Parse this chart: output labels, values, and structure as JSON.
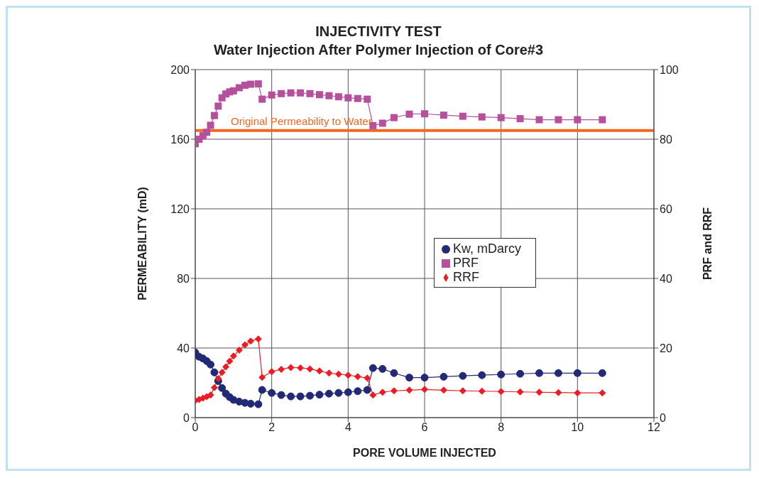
{
  "chart_data": {
    "type": "line",
    "title": "INJECTIVITY TEST",
    "subtitle": "Water Injection After Polymer Injection of Core#3",
    "xlabel": "PORE VOLUME INJECTED",
    "ylabel": "PERMEABILITY (mD)",
    "y2label": "PRF and RRF",
    "xlim": [
      0,
      12
    ],
    "xticks": [
      0,
      2,
      4,
      6,
      8,
      10,
      12
    ],
    "ylim": [
      0,
      200
    ],
    "yticks": [
      0,
      40,
      80,
      120,
      160,
      200
    ],
    "y2lim": [
      0,
      100
    ],
    "y2ticks": [
      0,
      20,
      40,
      60,
      80,
      100
    ],
    "grid": true,
    "legend": "right",
    "line_style": "solid",
    "series": [
      {
        "name": "Kw, mDarcy",
        "color": "#232a75",
        "marker": "circle",
        "x": [
          0,
          0.1,
          0.2,
          0.3,
          0.4,
          0.5,
          0.6,
          0.7,
          0.8,
          0.9,
          1.0,
          1.15,
          1.3,
          1.45,
          1.65,
          1.75,
          2.0,
          2.25,
          2.5,
          2.75,
          3.0,
          3.25,
          3.5,
          3.75,
          4.0,
          4.25,
          4.5,
          4.65,
          4.9,
          5.2,
          5.6,
          6.0,
          6.5,
          7.0,
          7.5,
          8.0,
          8.5,
          9.0,
          9.5,
          10.0,
          10.65
        ],
        "values": [
          37.4,
          35,
          34,
          32.5,
          30.5,
          26,
          21,
          17,
          13.8,
          11.8,
          10.2,
          9.2,
          8.5,
          8,
          7.7,
          15.9,
          14.2,
          13,
          12.2,
          12.2,
          12.6,
          13.2,
          13.8,
          14.2,
          14.6,
          15.2,
          15.9,
          28.5,
          28,
          25.6,
          23,
          23,
          23.5,
          24,
          24.4,
          24.8,
          25.2,
          25.6,
          25.6,
          25.6,
          25.6
        ]
      },
      {
        "name": "PRF",
        "color": "#b5509c",
        "marker": "square",
        "axis": "y2",
        "x": [
          0,
          0.1,
          0.2,
          0.3,
          0.4,
          0.5,
          0.6,
          0.7,
          0.8,
          0.9,
          1.0,
          1.15,
          1.3,
          1.45,
          1.65,
          1.75,
          2.0,
          2.25,
          2.5,
          2.75,
          3.0,
          3.25,
          3.5,
          3.75,
          4.0,
          4.25,
          4.5,
          4.65,
          4.9,
          5.2,
          5.6,
          6.0,
          6.5,
          7.0,
          7.5,
          8.0,
          8.5,
          9.0,
          9.5,
          10.0,
          10.65
        ],
        "values": [
          78.7,
          80,
          81,
          82,
          84,
          86.8,
          89.5,
          91.9,
          93,
          93.6,
          93.9,
          94.8,
          95.5,
          95.8,
          95.9,
          91.5,
          92.7,
          93.1,
          93.3,
          93.3,
          93.1,
          92.8,
          92.5,
          92.2,
          91.9,
          91.7,
          91.5,
          83.9,
          84.6,
          86.2,
          87.2,
          87.3,
          86.9,
          86.6,
          86.4,
          86.2,
          85.9,
          85.6,
          85.6,
          85.6,
          85.6
        ]
      },
      {
        "name": "RRF",
        "color": "#ed1c24",
        "marker": "diamond",
        "axis": "y2",
        "x": [
          0,
          0.1,
          0.2,
          0.3,
          0.4,
          0.5,
          0.6,
          0.7,
          0.8,
          0.9,
          1.0,
          1.15,
          1.3,
          1.45,
          1.65,
          1.75,
          2.0,
          2.25,
          2.5,
          2.75,
          3.0,
          3.25,
          3.5,
          3.75,
          4.0,
          4.25,
          4.5,
          4.65,
          4.9,
          5.2,
          5.6,
          6.0,
          6.5,
          7.0,
          7.5,
          8.0,
          8.5,
          9.0,
          9.5,
          10.0,
          10.65
        ],
        "values": [
          4.9,
          5.2,
          5.6,
          6,
          6.5,
          8.6,
          11.2,
          13,
          14.6,
          16.2,
          17.7,
          19.4,
          20.9,
          22,
          22.6,
          11.6,
          13.2,
          13.9,
          14.4,
          14.3,
          14,
          13.4,
          12.8,
          12.5,
          12.2,
          11.8,
          11.4,
          6.5,
          7.3,
          7.7,
          7.9,
          8.1,
          7.9,
          7.7,
          7.6,
          7.5,
          7.4,
          7.3,
          7.2,
          7.1,
          7.1
        ]
      }
    ],
    "ref_lines": [
      {
        "axis": "y",
        "value": 165,
        "label": "Original Permeability to Water",
        "color": "#f26522",
        "line_style": "solid"
      }
    ]
  }
}
